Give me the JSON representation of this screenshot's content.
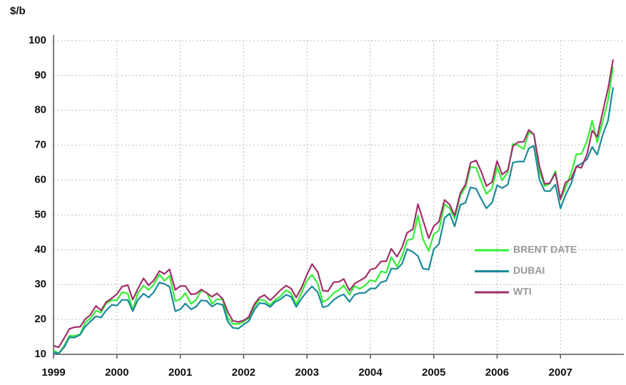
{
  "chart_data": {
    "type": "line",
    "y_label": "$/b",
    "xlim": [
      1999,
      2008
    ],
    "xticks": [
      1999,
      2000,
      2001,
      2002,
      2003,
      2004,
      2005,
      2006,
      2007
    ],
    "ylim": [
      10,
      100
    ],
    "yticks": [
      10,
      20,
      30,
      40,
      50,
      60,
      70,
      80,
      90,
      100
    ],
    "grid": true,
    "legend": "right",
    "x": [
      1999,
      1999.08,
      1999.17,
      1999.25,
      1999.33,
      1999.42,
      1999.5,
      1999.58,
      1999.67,
      1999.75,
      1999.83,
      1999.92,
      2000,
      2000.08,
      2000.17,
      2000.25,
      2000.33,
      2000.42,
      2000.5,
      2000.58,
      2000.67,
      2000.75,
      2000.83,
      2000.92,
      2001,
      2001.08,
      2001.17,
      2001.25,
      2001.33,
      2001.42,
      2001.5,
      2001.58,
      2001.67,
      2001.75,
      2001.83,
      2001.92,
      2002,
      2002.08,
      2002.17,
      2002.25,
      2002.33,
      2002.42,
      2002.5,
      2002.58,
      2002.67,
      2002.75,
      2002.83,
      2002.92,
      2003,
      2003.08,
      2003.17,
      2003.25,
      2003.33,
      2003.42,
      2003.5,
      2003.58,
      2003.67,
      2003.75,
      2003.83,
      2003.92,
      2004,
      2004.08,
      2004.17,
      2004.25,
      2004.33,
      2004.42,
      2004.5,
      2004.58,
      2004.67,
      2004.75,
      2004.83,
      2004.92,
      2005,
      2005.08,
      2005.17,
      2005.25,
      2005.33,
      2005.42,
      2005.5,
      2005.58,
      2005.67,
      2005.75,
      2005.83,
      2005.92,
      2006,
      2006.08,
      2006.17,
      2006.25,
      2006.33,
      2006.42,
      2006.5,
      2006.58,
      2006.67,
      2006.75,
      2006.83,
      2006.92,
      2007,
      2007.08,
      2007.17,
      2007.25,
      2007.33,
      2007.42,
      2007.5,
      2007.58,
      2007.67,
      2007.75,
      2007.83
    ],
    "series": [
      {
        "name": "BRENT DATE",
        "color": "#33ee33",
        "values": [
          11.1,
          10.3,
          12.5,
          15.3,
          15.3,
          15.7,
          19.1,
          20.3,
          22.5,
          22.0,
          24.6,
          25.5,
          25.5,
          27.8,
          27.5,
          22.7,
          27.6,
          29.7,
          28.5,
          30.0,
          32.9,
          31.1,
          32.5,
          25.3,
          25.8,
          27.6,
          24.5,
          25.7,
          28.3,
          27.7,
          24.5,
          25.8,
          25.7,
          20.5,
          18.8,
          18.7,
          19.4,
          20.3,
          23.7,
          25.7,
          25.4,
          24.1,
          25.7,
          26.6,
          28.4,
          27.5,
          24.3,
          28.0,
          31.2,
          32.8,
          30.3,
          25.0,
          25.8,
          27.6,
          28.4,
          29.8,
          27.1,
          29.6,
          28.8,
          29.8,
          31.3,
          30.9,
          33.8,
          33.4,
          37.9,
          35.2,
          38.2,
          42.7,
          43.2,
          49.8,
          43.1,
          39.6,
          44.5,
          45.5,
          53.1,
          51.9,
          49.0,
          55.6,
          57.9,
          63.8,
          63.5,
          59.5,
          56.0,
          57.6,
          63.6,
          59.9,
          62.3,
          70.4,
          70.0,
          68.9,
          73.6,
          73.2,
          62.4,
          58.3,
          58.9,
          62.6,
          54.3,
          57.8,
          62.1,
          67.4,
          67.5,
          71.3,
          77.0,
          70.8,
          77.1,
          82.9,
          92.5
        ]
      },
      {
        "name": "DUBAI",
        "color": "#1a8a9a",
        "values": [
          10.6,
          10.2,
          12.1,
          14.9,
          14.8,
          15.6,
          18.0,
          19.4,
          20.9,
          20.6,
          22.6,
          24.2,
          24.0,
          25.6,
          25.6,
          22.4,
          25.6,
          27.4,
          26.3,
          27.8,
          30.6,
          30.2,
          29.4,
          22.4,
          22.9,
          24.6,
          22.9,
          23.7,
          25.5,
          25.3,
          23.7,
          24.6,
          24.2,
          19.4,
          17.6,
          17.4,
          18.6,
          19.5,
          22.8,
          24.7,
          24.6,
          23.6,
          25.1,
          25.8,
          27.1,
          26.5,
          23.6,
          26.2,
          28.0,
          29.5,
          27.8,
          23.5,
          23.9,
          25.6,
          26.6,
          27.2,
          25.1,
          27.1,
          27.6,
          27.7,
          28.9,
          28.9,
          30.7,
          31.1,
          34.6,
          34.5,
          36.0,
          40.2,
          39.4,
          38.2,
          34.6,
          34.3,
          40.2,
          41.6,
          49.1,
          50.4,
          46.7,
          52.9,
          53.5,
          57.9,
          57.5,
          54.5,
          51.9,
          53.5,
          58.5,
          57.7,
          58.7,
          65.0,
          65.3,
          65.3,
          69.1,
          69.8,
          60.0,
          56.9,
          56.8,
          58.7,
          51.9,
          55.7,
          59.1,
          63.9,
          64.7,
          66.0,
          69.5,
          67.3,
          73.2,
          77.0,
          86.6
        ]
      },
      {
        "name": "WTI",
        "color": "#a0306a",
        "values": [
          12.5,
          12.0,
          14.7,
          17.3,
          17.8,
          17.9,
          20.1,
          21.3,
          23.9,
          22.6,
          25.0,
          26.1,
          27.3,
          29.4,
          29.9,
          25.7,
          28.8,
          31.8,
          29.8,
          31.2,
          33.9,
          33.1,
          34.4,
          28.5,
          29.6,
          29.6,
          27.2,
          27.4,
          28.6,
          27.6,
          26.5,
          27.5,
          25.9,
          22.2,
          19.6,
          19.3,
          19.7,
          20.7,
          24.4,
          26.3,
          27.0,
          25.5,
          26.9,
          28.4,
          29.7,
          28.9,
          26.3,
          29.4,
          32.9,
          35.9,
          33.6,
          28.3,
          28.1,
          30.7,
          30.8,
          31.6,
          28.3,
          30.3,
          31.1,
          32.1,
          34.3,
          34.7,
          36.7,
          36.7,
          40.3,
          38.0,
          40.7,
          44.9,
          45.9,
          53.1,
          48.5,
          43.3,
          46.8,
          48.0,
          54.3,
          53.0,
          49.8,
          56.3,
          58.7,
          65.0,
          65.6,
          62.4,
          58.3,
          59.4,
          65.5,
          61.6,
          62.9,
          69.7,
          70.9,
          71.0,
          74.4,
          73.1,
          63.8,
          58.9,
          59.1,
          62.0,
          54.6,
          59.3,
          60.4,
          63.9,
          63.5,
          67.5,
          74.2,
          72.4,
          79.9,
          86.2,
          94.6
        ]
      }
    ]
  }
}
